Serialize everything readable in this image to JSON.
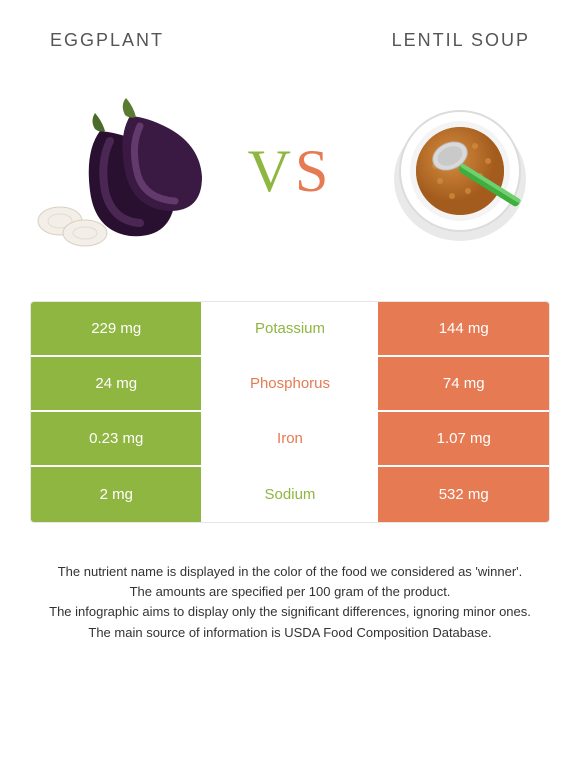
{
  "left_food": {
    "name": "Eggplant"
  },
  "right_food": {
    "name": "Lentil soup"
  },
  "colors": {
    "left": "#8fb640",
    "right": "#e57a53",
    "grid_border": "#e6e6e6",
    "text": "#333333"
  },
  "rows": [
    {
      "nutrient": "Potassium",
      "left": "229 mg",
      "right": "144 mg",
      "winner": "left"
    },
    {
      "nutrient": "Phosphorus",
      "left": "24 mg",
      "right": "74 mg",
      "winner": "right"
    },
    {
      "nutrient": "Iron",
      "left": "0.23 mg",
      "right": "1.07 mg",
      "winner": "right"
    },
    {
      "nutrient": "Sodium",
      "left": "2 mg",
      "right": "532 mg",
      "winner": "left"
    }
  ],
  "footnotes": [
    "The nutrient name is displayed in the color of the food we considered as 'winner'.",
    "The amounts are specified per 100 gram of the product.",
    "The infographic aims to display only the significant differences, ignoring minor ones.",
    "The main source of information is USDA Food Composition Database."
  ]
}
